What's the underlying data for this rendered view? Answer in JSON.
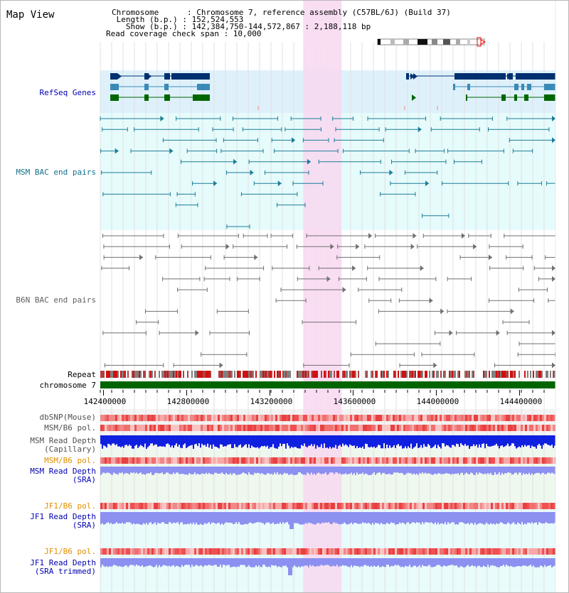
{
  "title": "Map View",
  "header": {
    "chromosome_label": "Chromosome      : Chromosome 7, reference assembly (C57BL/6J) (Build 37)",
    "length_label": " Length (b.p.) : 152,524,553",
    "show_label": "   Show (b.p.) : 142,384,750-144,572,867 : 2,188,118 bp",
    "coverage_label": "Read coverage check span : 10,000"
  },
  "tracks": {
    "refseq": "RefSeq Genes",
    "msm_bac": "MSM BAC end pairs",
    "b6n_bac": "B6N BAC end pairs",
    "repeat": "Repeat",
    "chromosome": "chromosome 7",
    "dbsnp": "dbSNP(Mouse)",
    "msm_b6_pol_1": "MSM/B6 pol.",
    "msm_depth_cap": "MSM Read Depth\n(Capillary)",
    "msm_b6_pol_2": "MSM/B6 pol.",
    "msm_depth_sra": "MSM Read Depth\n(SRA)",
    "jf1_b6_pol_1": "JF1/B6 pol.",
    "jf1_depth_sra": "JF1 Read Depth\n(SRA)",
    "jf1_b6_pol_2": "JF1/B6 pol.",
    "jf1_depth_trim": "JF1 Read Depth\n(SRA trimmed)"
  },
  "ruler": {
    "ticks": [
      "142400000",
      "142800000",
      "143200000",
      "143600000",
      "144000000",
      "144400000"
    ],
    "tick_values": [
      142400000,
      142800000,
      143200000,
      143600000,
      144000000,
      144400000
    ],
    "range": [
      142384750,
      144572867
    ]
  },
  "highlight": {
    "start": 143360000,
    "end": 143545000
  },
  "colors": {
    "refseq_bg": "#def1fb",
    "msm_bg": "#e6fbfb",
    "highlight": "#f8d8f0",
    "msm_feature": "#1a7d99",
    "b6n_feature": "#707070",
    "refseq_dark": "#003070",
    "refseq_mid": "#3a8ab8",
    "refseq_green": "#006600",
    "chromosome": "#006400",
    "depth_cap": "#1020e0",
    "depth_sra": "#8c90f0",
    "label_blue": "#0000b0",
    "label_teal": "#10708a",
    "label_gray": "#606060",
    "label_orange": "#e09000"
  }
}
